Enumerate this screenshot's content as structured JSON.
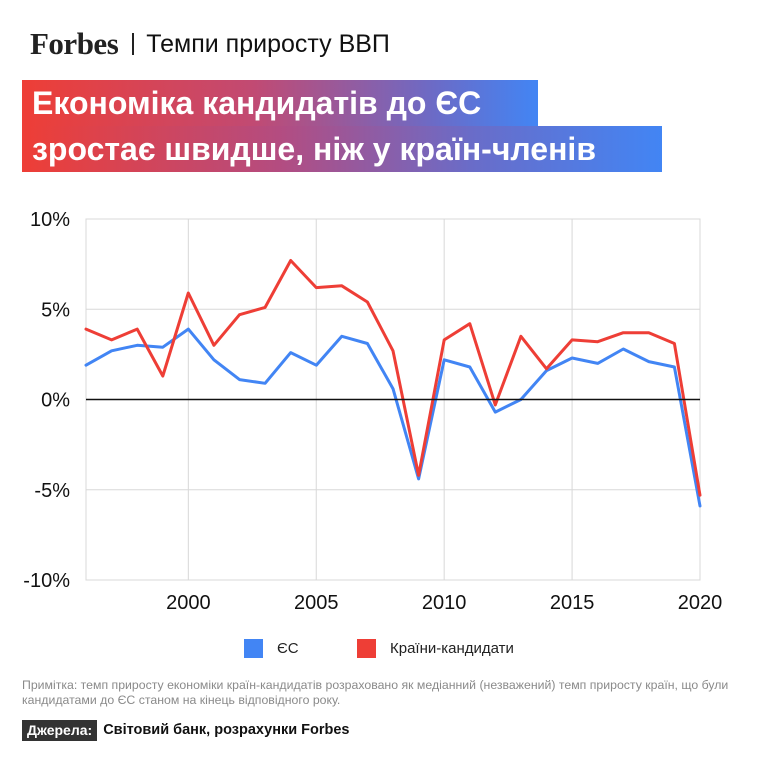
{
  "header": {
    "brand": "Forbes",
    "section": "Темпи приросту ВВП"
  },
  "banner": {
    "line1": "Економіка кандидатів до ЄС",
    "line2": "зростає швидше, ніж у країн-членів"
  },
  "colors": {
    "eu": "#4285f4",
    "candidates": "#ee3e36",
    "grid": "#d8d8d8",
    "zero": "#111111"
  },
  "chart_data": {
    "type": "line",
    "x": [
      1996,
      1997,
      1998,
      1999,
      2000,
      2001,
      2002,
      2003,
      2004,
      2005,
      2006,
      2007,
      2008,
      2009,
      2010,
      2011,
      2012,
      2013,
      2014,
      2015,
      2016,
      2017,
      2018,
      2019,
      2020
    ],
    "xlim": [
      1996,
      2020
    ],
    "ylim": [
      -10,
      10
    ],
    "x_ticks": [
      2000,
      2005,
      2010,
      2015,
      2020
    ],
    "y_ticks": [
      10,
      5,
      0,
      -5,
      -10
    ],
    "y_tick_labels": [
      "10%",
      "5%",
      "0%",
      "-5%",
      "-10%"
    ],
    "grid": true,
    "series": [
      {
        "name": "ЄС",
        "color": "#4285f4",
        "values": [
          1.9,
          2.7,
          3.0,
          2.9,
          3.9,
          2.2,
          1.1,
          0.9,
          2.6,
          1.9,
          3.5,
          3.1,
          0.6,
          -4.4,
          2.2,
          1.8,
          -0.7,
          0.0,
          1.6,
          2.3,
          2.0,
          2.8,
          2.1,
          1.8,
          -5.9
        ]
      },
      {
        "name": "Країни-кандидати",
        "color": "#ee3e36",
        "values": [
          3.9,
          3.3,
          3.9,
          1.3,
          5.9,
          3.0,
          4.7,
          5.1,
          7.7,
          6.2,
          6.3,
          5.4,
          2.7,
          -4.2,
          3.3,
          4.2,
          -0.3,
          3.5,
          1.7,
          3.3,
          3.2,
          3.7,
          3.7,
          3.1,
          -5.3
        ]
      }
    ]
  },
  "legend": {
    "eu": "ЄС",
    "candidates": "Країни-кандидати"
  },
  "note": "Примітка: темп приросту економіки країн-кандидатів розраховано як медіанний (незважений) темп приросту країн, що були кандидатами до ЄС станом на кінець відповідного року.",
  "source": {
    "tag": "Джерела:",
    "text": "Світовий банк, розрахунки Forbes"
  }
}
